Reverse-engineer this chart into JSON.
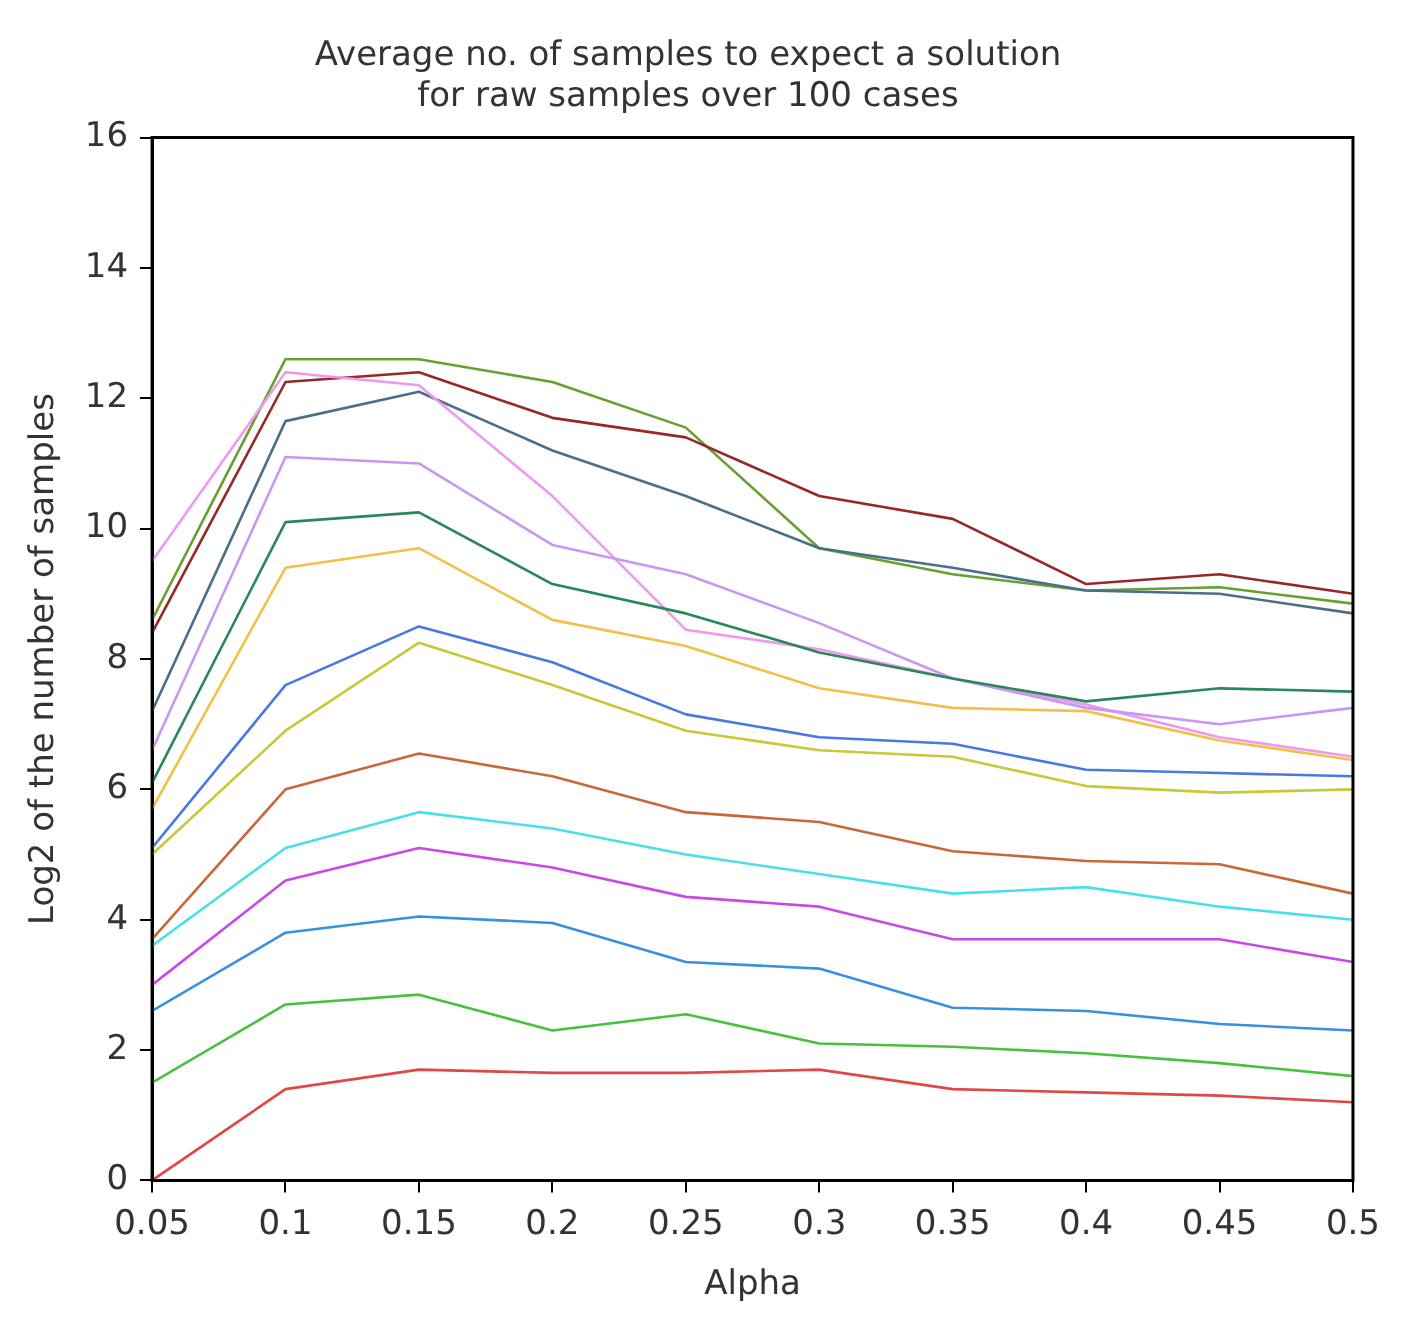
{
  "chart_data": {
    "type": "line",
    "title": "Average no. of samples to expect a solution\nfor raw samples over 100 cases",
    "xlabel": "Alpha",
    "ylabel": "Log2 of the number of samples",
    "x": [
      0.05,
      0.1,
      0.15,
      0.2,
      0.25,
      0.3,
      0.35,
      0.4,
      0.45,
      0.5
    ],
    "series": [
      {
        "color": "#e04848",
        "values": [
          0,
          1.4,
          1.7,
          1.65,
          1.65,
          1.7,
          1.4,
          1.35,
          1.3,
          1.2
        ]
      },
      {
        "color": "#48c040",
        "values": [
          1.5,
          2.7,
          2.85,
          2.3,
          2.55,
          2.1,
          2.05,
          1.95,
          1.8,
          1.6
        ]
      },
      {
        "color": "#3890e0",
        "values": [
          2.6,
          3.8,
          4.05,
          3.95,
          3.35,
          3.25,
          2.65,
          2.6,
          2.4,
          2.3
        ]
      },
      {
        "color": "#c848e8",
        "values": [
          3,
          4.6,
          5.1,
          4.8,
          4.35,
          4.2,
          3.7,
          3.7,
          3.7,
          3.35
        ]
      },
      {
        "color": "#48e0e8",
        "values": [
          3.6,
          5.1,
          5.65,
          5.4,
          5,
          4.7,
          4.4,
          4.5,
          4.2,
          4
        ]
      },
      {
        "color": "#c86838",
        "values": [
          3.7,
          6,
          6.55,
          6.2,
          5.65,
          5.5,
          5.05,
          4.9,
          4.85,
          4.4
        ]
      },
      {
        "color": "#c8c838",
        "values": [
          5,
          6.9,
          8.25,
          7.6,
          6.9,
          6.6,
          6.5,
          6.05,
          5.95,
          6
        ]
      },
      {
        "color": "#4878e0",
        "values": [
          5.1,
          7.6,
          8.5,
          7.95,
          7.15,
          6.8,
          6.7,
          6.3,
          6.25,
          6.2
        ]
      },
      {
        "color": "#f0c048",
        "values": [
          5.7,
          9.4,
          9.7,
          8.6,
          8.2,
          7.55,
          7.25,
          7.2,
          6.75,
          6.45
        ]
      },
      {
        "color": "#288858",
        "values": [
          6.1,
          10.1,
          10.25,
          9.15,
          8.7,
          8.1,
          7.7,
          7.35,
          7.55,
          7.5
        ]
      },
      {
        "color": "#c898f0",
        "values": [
          6.6,
          11.1,
          11,
          9.75,
          9.3,
          8.55,
          7.7,
          7.25,
          7,
          7.25
        ]
      },
      {
        "color": "#f098f0",
        "values": [
          9.5,
          12.4,
          12.2,
          10.5,
          8.45,
          8.15,
          7.7,
          7.3,
          6.8,
          6.5
        ]
      },
      {
        "color": "#487088",
        "values": [
          7.2,
          11.65,
          12.1,
          11.2,
          10.5,
          9.7,
          9.4,
          9.05,
          9,
          8.7
        ]
      },
      {
        "color": "#982828",
        "values": [
          8.4,
          12.25,
          12.4,
          11.7,
          11.4,
          10.5,
          10.15,
          9.15,
          9.3,
          9
        ]
      },
      {
        "color": "#68a030",
        "values": [
          8.6,
          12.6,
          12.6,
          12.25,
          11.55,
          9.7,
          9.3,
          9.05,
          9.1,
          8.85
        ]
      }
    ],
    "xlim": [
      0.05,
      0.5
    ],
    "xticks": [
      0.05,
      0.1,
      0.15,
      0.2,
      0.25,
      0.3,
      0.35,
      0.4,
      0.45,
      0.5
    ],
    "ylim": [
      0,
      16
    ],
    "yticks": [
      0,
      2,
      4,
      6,
      8,
      10,
      12,
      14,
      16
    ],
    "grid": false,
    "legend": false,
    "marker": "none",
    "line_style": "solid"
  }
}
